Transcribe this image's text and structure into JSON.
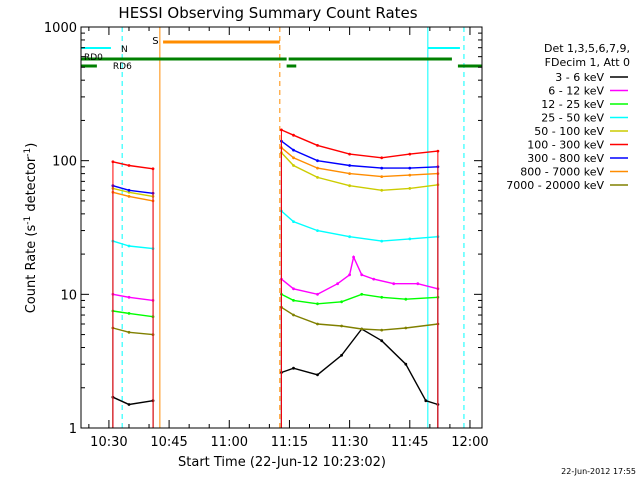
{
  "chart_data": {
    "type": "line",
    "title": "HESSI Observing Summary Count Rates",
    "xlabel": "Start Time (22-Jun-12 10:23:02)",
    "ylabel_main": "Count Rate (s",
    "ylabel_sup1": "-1",
    "ylabel_mid": " detector",
    "ylabel_sup2": "-1",
    "ylabel_end": ")",
    "x_ticks": [
      "10:30",
      "10:45",
      "11:00",
      "11:15",
      "11:30",
      "11:45",
      "12:00"
    ],
    "y_ticks": [
      "1",
      "10",
      "100",
      "1000"
    ],
    "y_scale": "log",
    "ylim": [
      1,
      1000
    ],
    "legend_header": [
      "Det 1,3,5,6,7,9,",
      "FDecim 1, Att 0"
    ],
    "footer_date": "22-Jun-2012 17:55",
    "flag_labels": {
      "n": "N",
      "s": "S",
      "rd0": "RD0",
      "rd6": "RD6"
    },
    "series": [
      {
        "name": "3 - 6 keV",
        "color": "#000000",
        "x": [
          "10:31",
          "10:35",
          "10:41",
          "11:13",
          "11:16",
          "11:22",
          "11:28",
          "11:33",
          "11:38",
          "11:44",
          "11:49",
          "11:52"
        ],
        "y": [
          1.7,
          1.5,
          1.6,
          2.6,
          2.8,
          2.5,
          3.5,
          5.5,
          4.5,
          3.0,
          1.6,
          1.5
        ]
      },
      {
        "name": "6 - 12 keV",
        "color": "#ff00ff",
        "x": [
          "10:31",
          "10:35",
          "10:41",
          "11:13",
          "11:16",
          "11:22",
          "11:27",
          "11:30",
          "11:31",
          "11:33",
          "11:36",
          "11:41",
          "11:47",
          "11:52"
        ],
        "y": [
          10,
          9.5,
          9,
          13,
          11,
          10,
          12,
          14,
          19,
          14,
          13,
          12,
          12,
          11
        ]
      },
      {
        "name": "12 - 25 keV",
        "color": "#00ff00",
        "x": [
          "10:31",
          "10:35",
          "10:41",
          "11:13",
          "11:16",
          "11:22",
          "11:28",
          "11:33",
          "11:38",
          "11:44",
          "11:52"
        ],
        "y": [
          7.5,
          7.2,
          6.8,
          10,
          9,
          8.5,
          8.8,
          10,
          9.5,
          9.2,
          9.5
        ]
      },
      {
        "name": "25 - 50 keV",
        "color": "#00ffff",
        "x": [
          "10:31",
          "10:35",
          "10:41",
          "11:13",
          "11:16",
          "11:22",
          "11:30",
          "11:38",
          "11:45",
          "11:52"
        ],
        "y": [
          25,
          23,
          22,
          42,
          35,
          30,
          27,
          25,
          26,
          27
        ]
      },
      {
        "name": "50 - 100 keV",
        "color": "#cccc00",
        "x": [
          "10:31",
          "10:35",
          "10:41",
          "11:13",
          "11:16",
          "11:22",
          "11:30",
          "11:38",
          "11:45",
          "11:52"
        ],
        "y": [
          62,
          58,
          54,
          115,
          92,
          75,
          65,
          60,
          62,
          66
        ]
      },
      {
        "name": "100 - 300 keV",
        "color": "#ff0000",
        "x": [
          "10:31",
          "10:35",
          "10:41",
          "11:13",
          "11:16",
          "11:22",
          "11:30",
          "11:38",
          "11:45",
          "11:52"
        ],
        "y": [
          98,
          92,
          87,
          170,
          155,
          130,
          112,
          105,
          112,
          118
        ]
      },
      {
        "name": "300 - 800 keV",
        "color": "#0000ff",
        "x": [
          "10:31",
          "10:35",
          "10:41",
          "11:13",
          "11:16",
          "11:22",
          "11:30",
          "11:38",
          "11:45",
          "11:52"
        ],
        "y": [
          65,
          60,
          57,
          140,
          120,
          100,
          92,
          88,
          88,
          90
        ]
      },
      {
        "name": "800 - 7000 keV",
        "color": "#ff8c00",
        "x": [
          "10:31",
          "10:35",
          "10:41",
          "11:13",
          "11:16",
          "11:22",
          "11:30",
          "11:38",
          "11:45",
          "11:52"
        ],
        "y": [
          58,
          54,
          50,
          125,
          105,
          88,
          80,
          76,
          78,
          80
        ]
      },
      {
        "name": "7000 - 20000 keV",
        "color": "#808000",
        "x": [
          "10:31",
          "10:35",
          "10:41",
          "11:13",
          "11:16",
          "11:22",
          "11:28",
          "11:33",
          "11:38",
          "11:44",
          "11:52"
        ],
        "y": [
          5.6,
          5.2,
          5.0,
          8,
          7,
          6,
          5.8,
          5.5,
          5.4,
          5.6,
          6
        ]
      }
    ]
  }
}
